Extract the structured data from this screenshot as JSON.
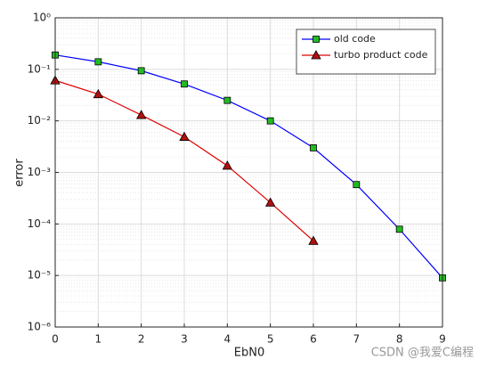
{
  "chart_data": {
    "type": "line",
    "x_label": "EbN0",
    "y_label": "error",
    "log_y": true,
    "grid": true,
    "minor_grid": true,
    "legend": "northeast",
    "xlim": [
      0,
      9
    ],
    "xticks": [
      0,
      1,
      2,
      3,
      4,
      5,
      6,
      7,
      8,
      9
    ],
    "ylim": [
      1e-06,
      1
    ],
    "yticks": [
      {
        "value": 1e-06,
        "label": "10⁻⁶"
      },
      {
        "value": 1e-05,
        "label": "10⁻⁵"
      },
      {
        "value": 0.0001,
        "label": "10⁻⁴"
      },
      {
        "value": 0.001,
        "label": "10⁻³"
      },
      {
        "value": 0.01,
        "label": "10⁻²"
      },
      {
        "value": 0.1,
        "label": "10⁻¹"
      },
      {
        "value": 1,
        "label": "10⁰"
      }
    ],
    "series": [
      {
        "name": "old code",
        "color": "#0000ff",
        "marker": "square",
        "marker_color": "#22bb22",
        "x": [
          0,
          1,
          2,
          3,
          4,
          5,
          6,
          7,
          8,
          9
        ],
        "values": [
          0.19,
          0.14,
          0.094,
          0.052,
          0.025,
          0.01,
          0.003,
          0.00058,
          7.9e-05,
          9e-06
        ]
      },
      {
        "name": "turbo product code",
        "color": "#e00000",
        "marker": "triangle",
        "marker_color": "#b01010",
        "x": [
          0,
          1,
          2,
          3,
          4,
          5,
          6
        ],
        "values": [
          0.061,
          0.033,
          0.013,
          0.0049,
          0.00135,
          0.00026,
          4.7e-05
        ]
      }
    ]
  },
  "watermark": "CSDN @我爱C编程"
}
